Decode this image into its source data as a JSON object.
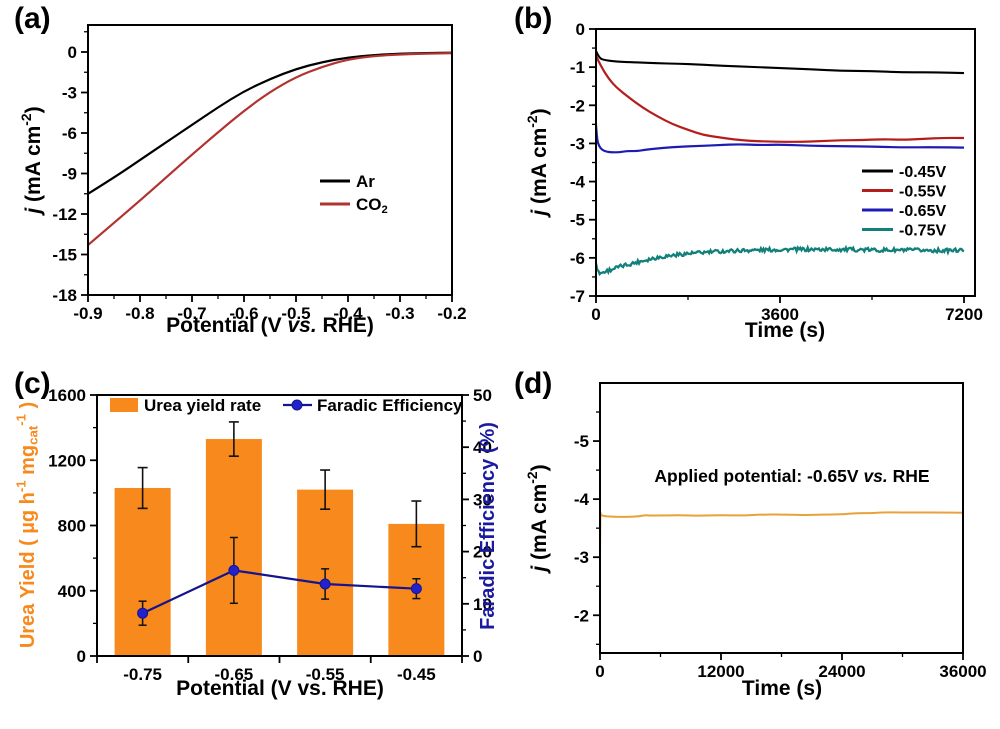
{
  "figure": {
    "background": "#ffffff"
  },
  "chart_data": [
    {
      "panel_label": "(a)",
      "type": "line",
      "xlabel": [
        {
          "t": "Potential (V "
        },
        {
          "t": "vs.",
          "i": true
        },
        {
          "t": " RHE)"
        }
      ],
      "ylabel": [
        {
          "t": "j",
          "i": true
        },
        {
          "t": " (mA cm"
        },
        {
          "t": "-2",
          "sup": true
        },
        {
          "t": ")"
        }
      ],
      "xaxis": {
        "min": -0.9,
        "max": -0.2,
        "tick_values": [
          -0.9,
          -0.8,
          -0.7,
          -0.6,
          -0.5,
          -0.4,
          -0.3,
          -0.2
        ],
        "tick_labels": [
          "-0.9",
          "-0.8",
          "-0.7",
          "-0.6",
          "-0.5",
          "-0.4",
          "-0.3",
          "-0.2"
        ],
        "minor": true
      },
      "yaxis": {
        "top": 2,
        "bottom": -18,
        "tick_values": [
          0,
          -3,
          -6,
          -9,
          -12,
          -15,
          -18
        ],
        "tick_labels": [
          "0",
          "-3",
          "-6",
          "-9",
          "-12",
          "-15",
          "-18"
        ],
        "minor": true
      },
      "series": [
        {
          "name": [
            {
              "t": "Ar"
            }
          ],
          "color": "#000000",
          "width": 2.2,
          "noise": 0,
          "x": [
            -0.9,
            -0.85,
            -0.8,
            -0.75,
            -0.7,
            -0.65,
            -0.6,
            -0.55,
            -0.5,
            -0.45,
            -0.4,
            -0.35,
            -0.3,
            -0.25,
            -0.2
          ],
          "y": [
            -10.5,
            -9.3,
            -8.0,
            -6.7,
            -5.4,
            -4.1,
            -2.9,
            -2.0,
            -1.25,
            -0.75,
            -0.4,
            -0.22,
            -0.12,
            -0.08,
            -0.05
          ]
        },
        {
          "name": [
            {
              "t": "CO"
            },
            {
              "t": "2",
              "sub": true
            }
          ],
          "color": "#b23230",
          "width": 2.2,
          "noise": 0,
          "x": [
            -0.9,
            -0.85,
            -0.8,
            -0.75,
            -0.7,
            -0.65,
            -0.6,
            -0.55,
            -0.5,
            -0.45,
            -0.4,
            -0.35,
            -0.3,
            -0.25,
            -0.2
          ],
          "y": [
            -14.3,
            -12.65,
            -11.0,
            -9.3,
            -7.6,
            -5.95,
            -4.35,
            -2.95,
            -1.85,
            -1.1,
            -0.55,
            -0.3,
            -0.18,
            -0.12,
            -0.08
          ]
        }
      ]
    },
    {
      "panel_label": "(b)",
      "type": "line",
      "xlabel": [
        {
          "t": "Time (s)"
        }
      ],
      "ylabel": [
        {
          "t": "j",
          "i": true
        },
        {
          "t": " (mA cm"
        },
        {
          "t": "-2",
          "sup": true
        },
        {
          "t": ")"
        }
      ],
      "xaxis": {
        "min": 0,
        "max": 7415,
        "tick_values": [
          0,
          3600,
          7200
        ],
        "tick_labels": [
          "0",
          "3600",
          "7200"
        ],
        "minor": true
      },
      "yaxis": {
        "top": 0,
        "bottom": -7,
        "tick_values": [
          0,
          -1,
          -2,
          -3,
          -4,
          -5,
          -6,
          -7
        ],
        "tick_labels": [
          "0",
          "-1",
          "-2",
          "-3",
          "-4",
          "-5",
          "-6",
          "-7"
        ],
        "minor": true
      },
      "series": [
        {
          "name": [
            {
              "t": "-0.45V"
            }
          ],
          "color": "#000000",
          "width": 2.1,
          "noise": 0.01,
          "x": [
            0,
            60,
            150,
            400,
            800,
            1200,
            1600,
            2000,
            2500,
            3000,
            3600,
            4200,
            4800,
            5400,
            6000,
            6600,
            7200
          ],
          "y": [
            -0.58,
            -0.75,
            -0.82,
            -0.86,
            -0.88,
            -0.9,
            -0.92,
            -0.94,
            -0.97,
            -1.0,
            -1.03,
            -1.06,
            -1.09,
            -1.11,
            -1.13,
            -1.14,
            -1.15
          ]
        },
        {
          "name": [
            {
              "t": "-0.55V"
            }
          ],
          "color": "#b51d1d",
          "width": 2.2,
          "noise": 0.015,
          "x": [
            0,
            100,
            250,
            400,
            600,
            900,
            1200,
            1500,
            1800,
            2100,
            2400,
            2700,
            3000,
            3300,
            3600,
            4000,
            4400,
            4800,
            5200,
            5600,
            6000,
            6400,
            6800,
            7200
          ],
          "y": [
            -0.7,
            -1.0,
            -1.3,
            -1.52,
            -1.75,
            -2.05,
            -2.3,
            -2.5,
            -2.65,
            -2.77,
            -2.85,
            -2.9,
            -2.94,
            -2.96,
            -2.96,
            -2.95,
            -2.94,
            -2.93,
            -2.92,
            -2.9,
            -2.89,
            -2.87,
            -2.86,
            -2.85
          ]
        },
        {
          "name": [
            {
              "t": "-0.65V"
            }
          ],
          "color": "#1c1cb4",
          "width": 2.2,
          "noise": 0.015,
          "x": [
            0,
            20,
            60,
            120,
            200,
            300,
            450,
            600,
            800,
            1000,
            1300,
            1600,
            2000,
            2400,
            2800,
            3200,
            3600,
            4200,
            4800,
            5400,
            6000,
            6600,
            7200
          ],
          "y": [
            -2.5,
            -2.9,
            -3.08,
            -3.17,
            -3.21,
            -3.22,
            -3.22,
            -3.21,
            -3.19,
            -3.16,
            -3.12,
            -3.09,
            -3.06,
            -3.04,
            -3.03,
            -3.03,
            -3.04,
            -3.05,
            -3.07,
            -3.08,
            -3.1,
            -3.11,
            -3.12
          ]
        },
        {
          "name": [
            {
              "t": "-0.75V"
            }
          ],
          "color": "#11807a",
          "width": 2.3,
          "noise": 0.05,
          "x": [
            0,
            40,
            100,
            200,
            350,
            500,
            700,
            900,
            1150,
            1400,
            1700,
            2000,
            2300,
            2600,
            3000,
            3400,
            3800,
            4300,
            4800,
            5300,
            5800,
            6300,
            6800,
            7200
          ],
          "y": [
            -6.1,
            -6.38,
            -6.4,
            -6.35,
            -6.28,
            -6.22,
            -6.15,
            -6.08,
            -6.0,
            -5.95,
            -5.9,
            -5.87,
            -5.84,
            -5.82,
            -5.8,
            -5.79,
            -5.78,
            -5.78,
            -5.78,
            -5.79,
            -5.8,
            -5.8,
            -5.81,
            -5.8
          ]
        }
      ]
    },
    {
      "panel_label": "(c)",
      "type": "combo",
      "categories": [
        "-0.75",
        "-0.65",
        "-0.55",
        "-0.45"
      ],
      "xlabel": [
        {
          "t": "Potential (V vs. RHE)"
        }
      ],
      "ylabel_left": [
        {
          "t": "Urea Yield ( "
        },
        {
          "t": "µ"
        },
        {
          "t": "g h"
        },
        {
          "t": "-1",
          "sup": true
        },
        {
          "t": " mg"
        },
        {
          "t": "cat",
          "sub": true
        },
        {
          "t": "-1",
          "sup": true
        },
        {
          "t": " )"
        }
      ],
      "ylabel_right": [
        {
          "t": "Faradic Efficiency (%)"
        }
      ],
      "yaxis_left": {
        "top": 1600,
        "bottom": 0,
        "tick_values": [
          0,
          400,
          800,
          1200,
          1600
        ],
        "tick_labels": [
          "0",
          "400",
          "800",
          "1200",
          "1600"
        ],
        "minor": true
      },
      "yaxis_right": {
        "top": 50,
        "bottom": 0,
        "tick_values": [
          0,
          10,
          20,
          30,
          40,
          50
        ],
        "tick_labels": [
          "0",
          "10",
          "20",
          "30",
          "40",
          "50"
        ],
        "minor": true
      },
      "bars": {
        "legend": [
          {
            "t": "Urea yield rate"
          }
        ],
        "color": "#f8891c",
        "values": [
          1030,
          1330,
          1020,
          810
        ],
        "errors": [
          125,
          105,
          120,
          140
        ]
      },
      "line": {
        "legend": [
          {
            "t": "Faradic Efficiency"
          }
        ],
        "color": "#14148f",
        "dot_color": "#2222cc",
        "values": [
          8.2,
          16.4,
          13.8,
          12.9
        ],
        "errors": [
          2.3,
          6.3,
          2.9,
          1.9
        ]
      }
    },
    {
      "panel_label": "(d)",
      "type": "line",
      "xlabel": [
        {
          "t": "Time (s)"
        }
      ],
      "ylabel": [
        {
          "t": "j",
          "i": true
        },
        {
          "t": " (mA cm"
        },
        {
          "t": "-2",
          "sup": true
        },
        {
          "t": ")"
        }
      ],
      "annotation": [
        {
          "t": "Applied potential: -0.65V "
        },
        {
          "t": "vs.",
          "i": true
        },
        {
          "t": " RHE"
        }
      ],
      "xaxis": {
        "min": 0,
        "max": 36000,
        "tick_values": [
          0,
          12000,
          24000,
          36000
        ],
        "tick_labels": [
          "0",
          "12000",
          "24000",
          "36000"
        ],
        "minor": true
      },
      "yaxis": {
        "top": -6,
        "bottom": -1.35,
        "tick_values": [
          -5,
          -4,
          -3,
          -2
        ],
        "tick_labels": [
          "-5",
          "-4",
          "-3",
          "-2"
        ],
        "minor": true
      },
      "series": [
        {
          "name": null,
          "color": "#e8a23c",
          "width": 2,
          "noise": 0.006,
          "x": [
            0,
            30,
            80,
            200,
            500,
            1000,
            2000,
            3000,
            4000,
            4500,
            5000,
            6000,
            8000,
            10000,
            12000,
            14000,
            16000,
            18000,
            20000,
            22000,
            24000,
            25000,
            26000,
            27000,
            28000,
            30000,
            32000,
            34000,
            36000
          ],
          "y": [
            -3.0,
            -3.78,
            -3.74,
            -3.72,
            -3.71,
            -3.7,
            -3.7,
            -3.7,
            -3.71,
            -3.73,
            -3.72,
            -3.72,
            -3.72,
            -3.72,
            -3.72,
            -3.72,
            -3.73,
            -3.73,
            -3.73,
            -3.73,
            -3.74,
            -3.75,
            -3.76,
            -3.76,
            -3.77,
            -3.77,
            -3.77,
            -3.77,
            -3.76
          ]
        }
      ]
    }
  ]
}
